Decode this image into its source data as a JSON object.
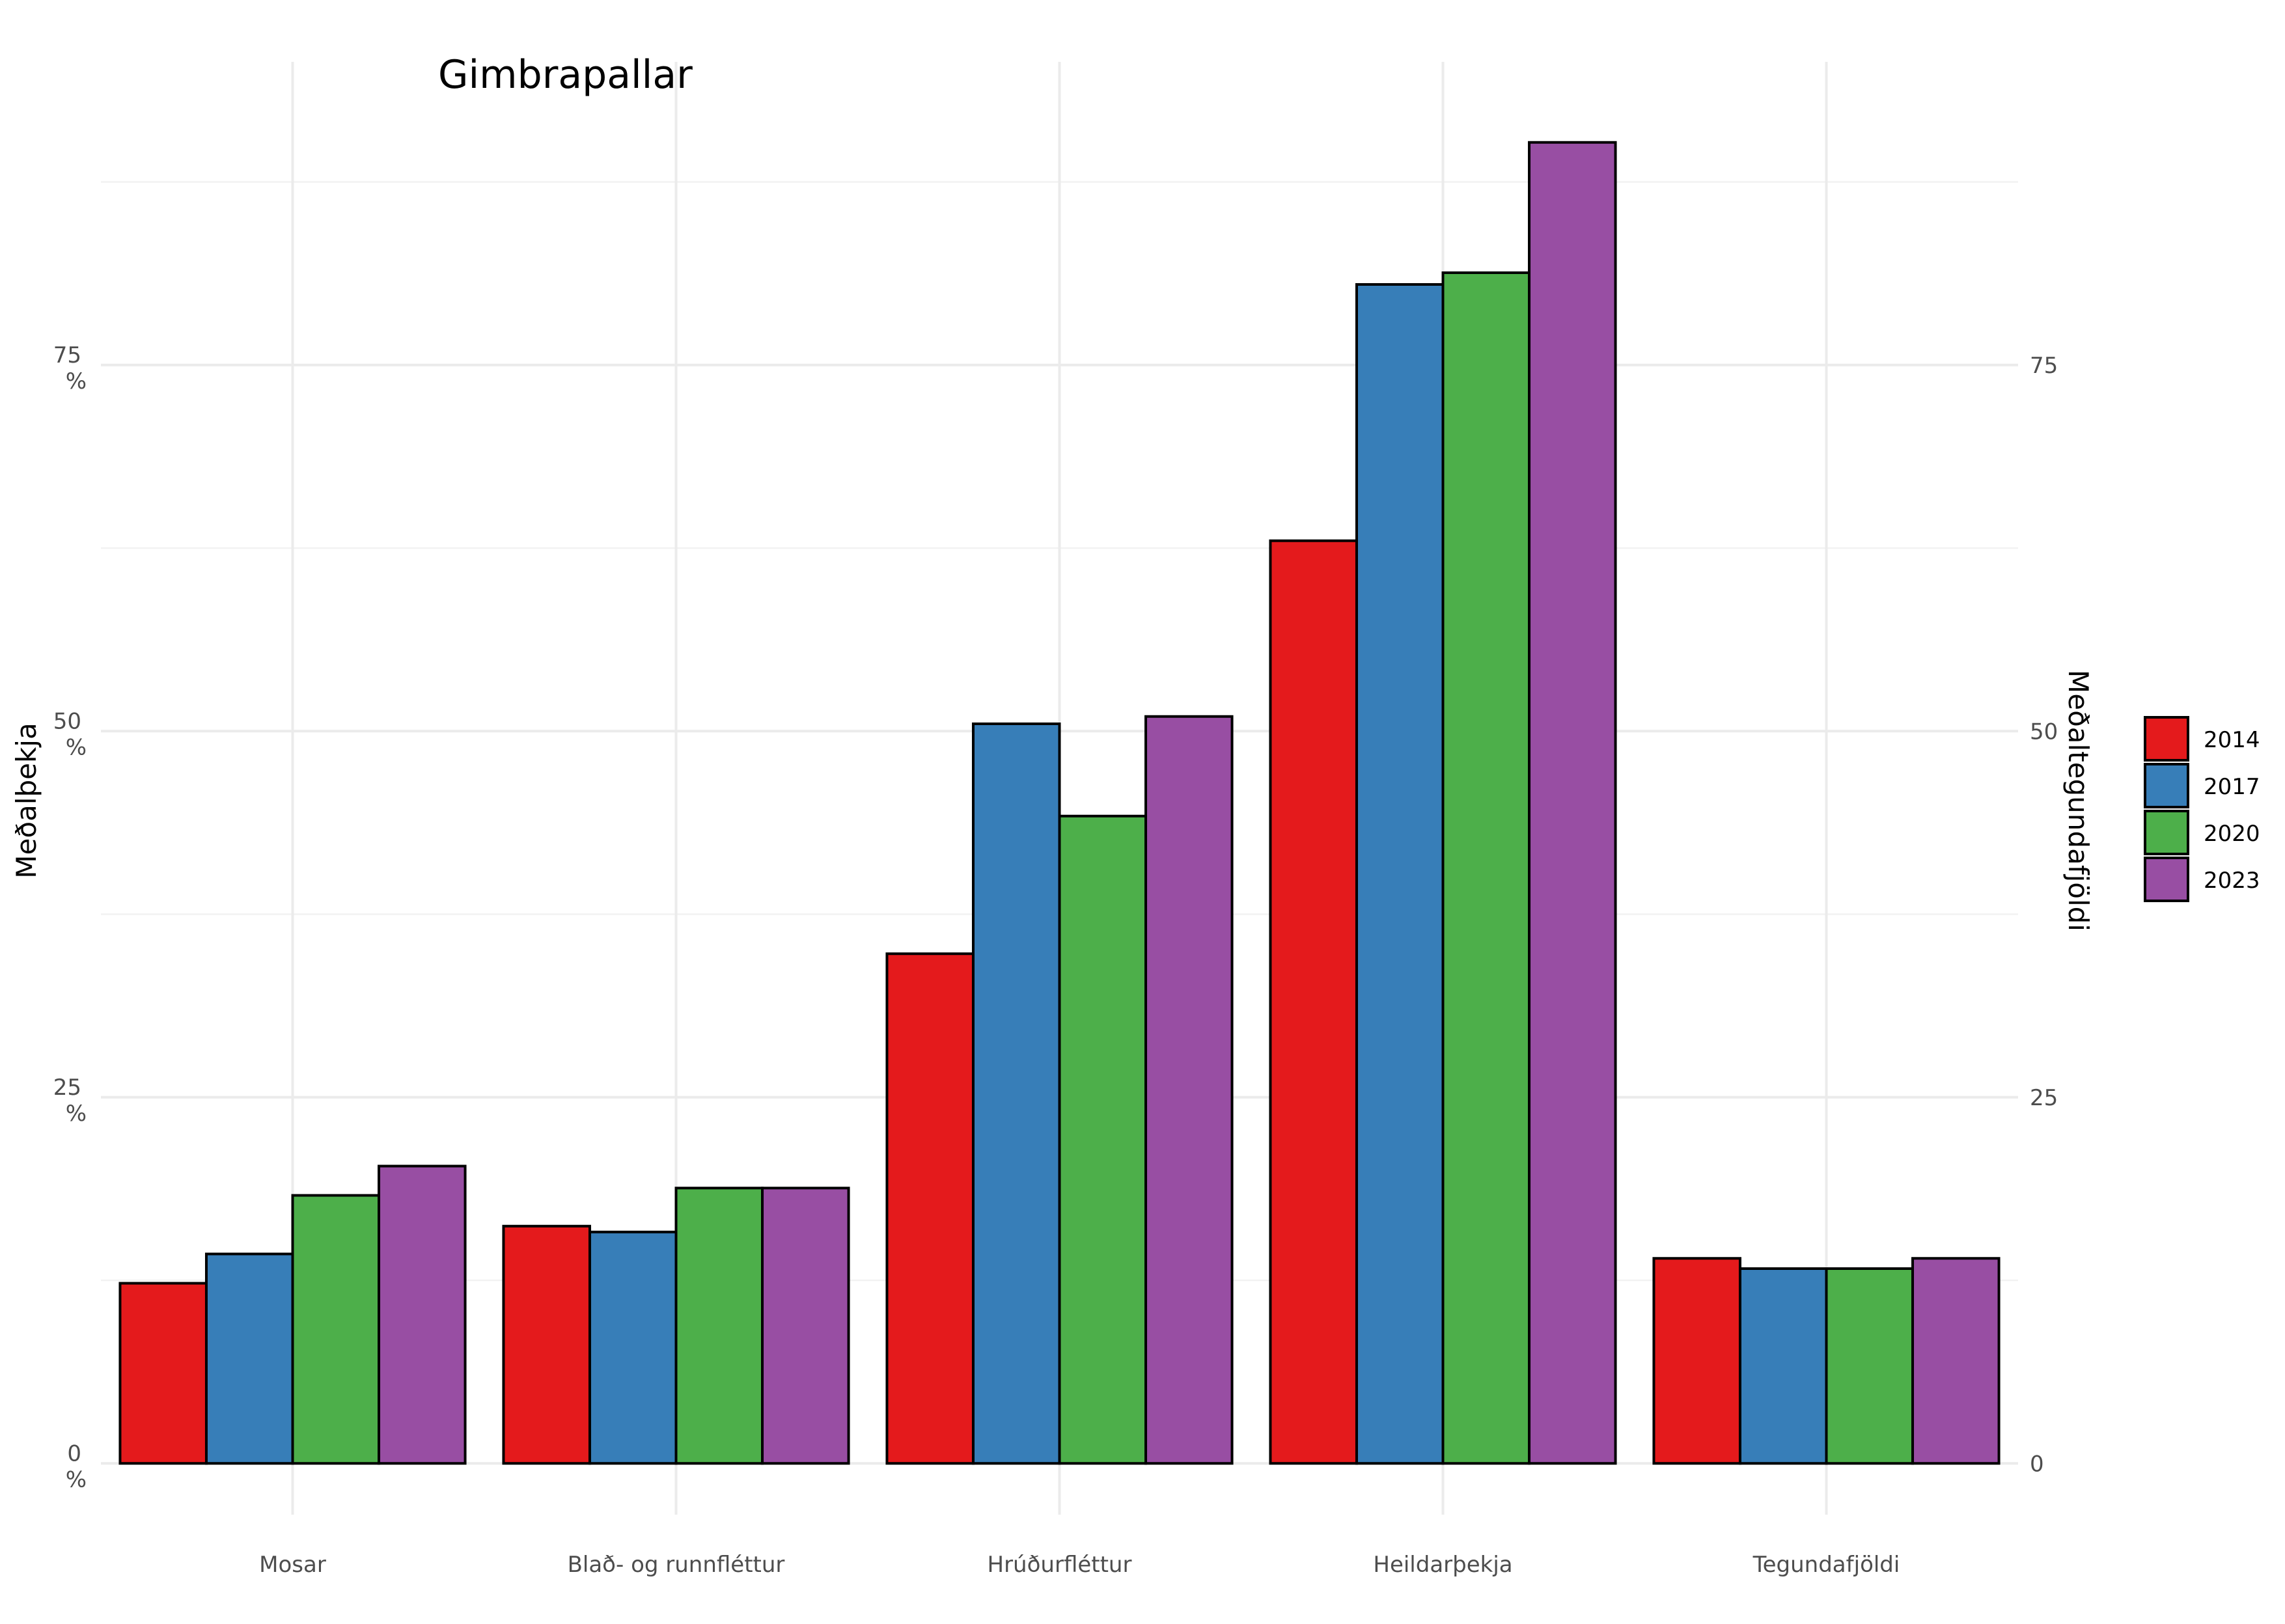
{
  "chart_data": {
    "type": "bar",
    "title": "Gimbrapallar",
    "xlabel": "",
    "ylabel": "Meðalþekja",
    "y2label": "Meðaltegundafjöldi",
    "categories": [
      "Mosar",
      "Blað- og runnfléttur",
      "Hrúðurfléttur",
      "Heildarþekja",
      "Tegundafjöldi"
    ],
    "series": [
      {
        "name": "2014",
        "color": "#e41a1c",
        "values": [
          12.3,
          16.2,
          34.8,
          63.0,
          14.0
        ]
      },
      {
        "name": "2017",
        "color": "#377eb8",
        "values": [
          14.3,
          15.8,
          50.5,
          80.5,
          13.3
        ]
      },
      {
        "name": "2020",
        "color": "#4daf4a",
        "values": [
          18.3,
          18.8,
          44.2,
          81.3,
          13.3
        ]
      },
      {
        "name": "2023",
        "color": "#984ea3",
        "values": [
          20.3,
          18.8,
          51.0,
          90.2,
          14.0
        ]
      }
    ],
    "ylim": [
      -3.5,
      95.7
    ],
    "y_ticks": [
      {
        "value": 0,
        "label": "0",
        "unit": "%"
      },
      {
        "value": 25,
        "label": "25",
        "unit": "%"
      },
      {
        "value": 50,
        "label": "50",
        "unit": "%"
      },
      {
        "value": 75,
        "label": "75",
        "unit": "%"
      }
    ],
    "y2_ticks": [
      "0",
      "25",
      "50",
      "75"
    ],
    "grid": true,
    "legend_position": "right"
  }
}
